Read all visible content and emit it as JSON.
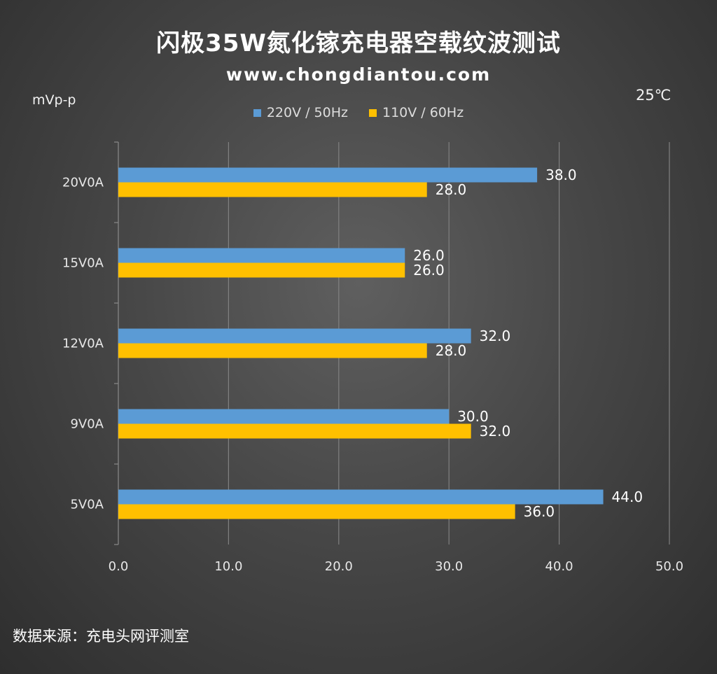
{
  "header": {
    "title": "闪极35W氮化镓充电器空载纹波测试",
    "subtitle": "www.chongdiantou.com",
    "unit_left": "mVp-p",
    "unit_right": "25℃"
  },
  "footer": {
    "source": "数据来源：充电头网评测室"
  },
  "chart_data": {
    "type": "bar",
    "orientation": "horizontal",
    "title": "闪极35W氮化镓充电器空载纹波测试",
    "ylabel": "mVp-p",
    "categories": [
      "20V0A",
      "15V0A",
      "12V0A",
      "9V0A",
      "5V0A"
    ],
    "series": [
      {
        "name": "220V / 50Hz",
        "color": "#5b9bd5",
        "values": [
          38.0,
          26.0,
          32.0,
          30.0,
          44.0
        ]
      },
      {
        "name": "110V / 60Hz",
        "color": "#ffc000",
        "values": [
          28.0,
          26.0,
          28.0,
          32.0,
          36.0
        ]
      }
    ],
    "xlim": [
      0,
      50
    ],
    "xticks": [
      "0.0",
      "10.0",
      "20.0",
      "30.0",
      "40.0",
      "50.0"
    ],
    "grid": true,
    "legend": "top-center"
  }
}
